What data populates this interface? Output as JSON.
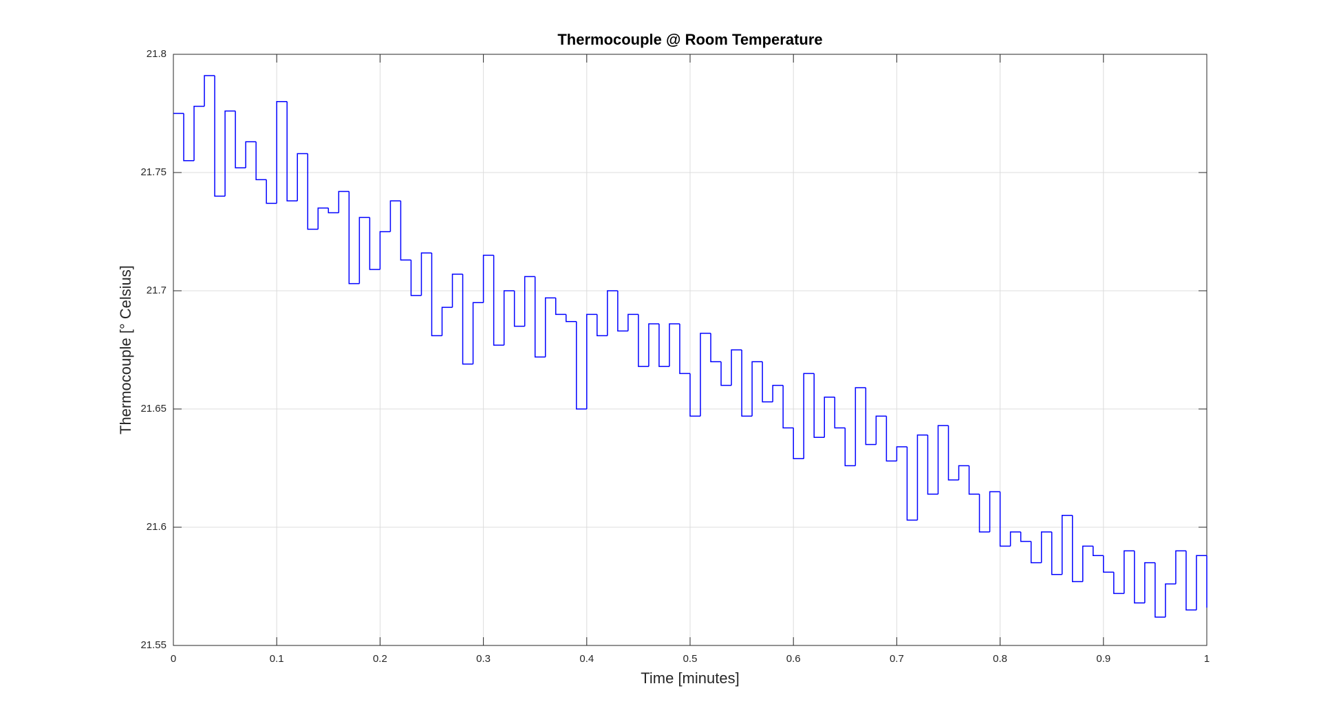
{
  "chart_data": {
    "type": "stairs",
    "title": "Thermocouple @ Room Temperature",
    "x_label": "Time [minutes]",
    "y_label": "Thermocouple [° Celsius]",
    "x": [
      0,
      0.01,
      0.02,
      0.03,
      0.04,
      0.05,
      0.06,
      0.07,
      0.08,
      0.09,
      0.1,
      0.11,
      0.12,
      0.13,
      0.14,
      0.15,
      0.16,
      0.17,
      0.18,
      0.19,
      0.2,
      0.21,
      0.22,
      0.23,
      0.24,
      0.25,
      0.26,
      0.27,
      0.28,
      0.29,
      0.3,
      0.31,
      0.32,
      0.33,
      0.34,
      0.35,
      0.36,
      0.37,
      0.38,
      0.39,
      0.4,
      0.41,
      0.42,
      0.43,
      0.44,
      0.45,
      0.46,
      0.47,
      0.48,
      0.49,
      0.5,
      0.51,
      0.52,
      0.53,
      0.54,
      0.55,
      0.56,
      0.57,
      0.58,
      0.59,
      0.6,
      0.61,
      0.62,
      0.63,
      0.64,
      0.65,
      0.66,
      0.67,
      0.68,
      0.69,
      0.7,
      0.71,
      0.72,
      0.73,
      0.74,
      0.75,
      0.76,
      0.77,
      0.78,
      0.79,
      0.8,
      0.81,
      0.82,
      0.83,
      0.84,
      0.85,
      0.86,
      0.87,
      0.88,
      0.89,
      0.9,
      0.91,
      0.92,
      0.93,
      0.94,
      0.95,
      0.96,
      0.97,
      0.98,
      0.99,
      1
    ],
    "series": [
      {
        "color": "#0000ff",
        "values": [
          21.775,
          21.755,
          21.778,
          21.791,
          21.74,
          21.776,
          21.752,
          21.763,
          21.747,
          21.737,
          21.78,
          21.738,
          21.758,
          21.726,
          21.735,
          21.733,
          21.742,
          21.703,
          21.731,
          21.709,
          21.725,
          21.738,
          21.713,
          21.698,
          21.716,
          21.681,
          21.693,
          21.707,
          21.669,
          21.695,
          21.715,
          21.677,
          21.7,
          21.685,
          21.706,
          21.672,
          21.697,
          21.69,
          21.687,
          21.65,
          21.69,
          21.681,
          21.7,
          21.683,
          21.69,
          21.668,
          21.686,
          21.668,
          21.686,
          21.665,
          21.647,
          21.682,
          21.67,
          21.66,
          21.675,
          21.647,
          21.67,
          21.653,
          21.66,
          21.642,
          21.629,
          21.665,
          21.638,
          21.655,
          21.642,
          21.626,
          21.659,
          21.635,
          21.647,
          21.628,
          21.634,
          21.603,
          21.639,
          21.614,
          21.643,
          21.62,
          21.626,
          21.614,
          21.598,
          21.615,
          21.592,
          21.598,
          21.594,
          21.585,
          21.598,
          21.58,
          21.605,
          21.577,
          21.592,
          21.588,
          21.581,
          21.572,
          21.59,
          21.568,
          21.585,
          21.562,
          21.576,
          21.59,
          21.565,
          21.588,
          21.566
        ]
      }
    ],
    "xlim": [
      0,
      1
    ],
    "xticks": [
      0,
      0.1,
      0.2,
      0.3,
      0.4,
      0.5,
      0.6,
      0.7,
      0.8,
      0.9,
      1
    ],
    "ylim": [
      21.55,
      21.8
    ],
    "yticks": [
      21.55,
      21.6,
      21.65,
      21.7,
      21.75,
      21.8
    ],
    "grid": true
  }
}
